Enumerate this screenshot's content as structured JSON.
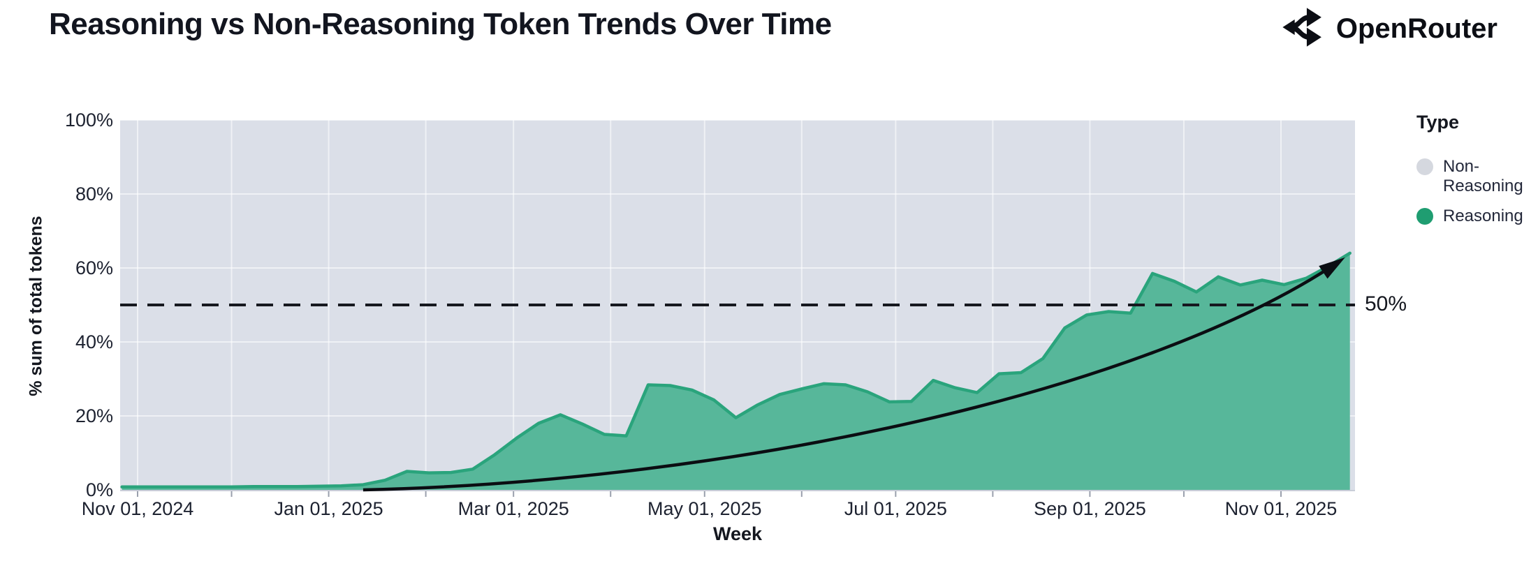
{
  "header": {
    "title": "Reasoning vs Non-Reasoning Token Trends Over Time",
    "brand": "OpenRouter"
  },
  "legend": {
    "title": "Type",
    "items": [
      {
        "label": "Non-Reasoning",
        "color": "#d5d8df"
      },
      {
        "label": "Reasoning",
        "color": "#1f9d71"
      }
    ]
  },
  "annotations": {
    "fifty_line_label": "50%"
  },
  "colors": {
    "plot_background": "#dbdfe8",
    "gridline": "rgba(255,255,255,0.55)",
    "axis_line": "#c9cdd8",
    "tick_mark": "#9aa0ad",
    "area_fill": "#57b79a",
    "area_stroke": "#2aa47c",
    "trend_line": "#0b0d12",
    "dashed_line": "#16181f",
    "tick_text": "#1d2230"
  },
  "chart_data": {
    "type": "area",
    "stacked_to_100": true,
    "title": "Reasoning vs Non-Reasoning Token Trends Over Time",
    "xlabel": "Week",
    "ylabel": "% sum of total tokens",
    "ylim": [
      0,
      100
    ],
    "grid": true,
    "legend_position": "right",
    "y_ticks": [
      "0%",
      "20%",
      "40%",
      "60%",
      "80%",
      "100%"
    ],
    "x_ticks": [
      "Nov 01, 2024",
      "Jan 01, 2025",
      "Mar 01, 2025",
      "May 01, 2025",
      "Jul 01, 2025",
      "Sep 01, 2025",
      "Nov 01, 2025"
    ],
    "x_minor_ticks_every": "month",
    "weeks": [
      "2024-10-27",
      "2024-11-03",
      "2024-11-10",
      "2024-11-17",
      "2024-11-24",
      "2024-12-01",
      "2024-12-08",
      "2024-12-15",
      "2024-12-22",
      "2024-12-29",
      "2025-01-05",
      "2025-01-12",
      "2025-01-19",
      "2025-01-26",
      "2025-02-02",
      "2025-02-09",
      "2025-02-16",
      "2025-02-23",
      "2025-03-02",
      "2025-03-09",
      "2025-03-16",
      "2025-03-23",
      "2025-03-30",
      "2025-04-06",
      "2025-04-13",
      "2025-04-20",
      "2025-04-27",
      "2025-05-04",
      "2025-05-11",
      "2025-05-18",
      "2025-05-25",
      "2025-06-01",
      "2025-06-08",
      "2025-06-15",
      "2025-06-22",
      "2025-06-29",
      "2025-07-06",
      "2025-07-13",
      "2025-07-20",
      "2025-07-27",
      "2025-08-03",
      "2025-08-10",
      "2025-08-17",
      "2025-08-24",
      "2025-08-31",
      "2025-09-07",
      "2025-09-14",
      "2025-09-21",
      "2025-09-28",
      "2025-10-05",
      "2025-10-12",
      "2025-10-19",
      "2025-10-26",
      "2025-11-02",
      "2025-11-09",
      "2025-11-16",
      "2025-11-23"
    ],
    "series": [
      {
        "name": "Reasoning",
        "color": "#57b79a",
        "values": [
          0.8,
          0.8,
          0.8,
          0.8,
          0.8,
          0.8,
          0.9,
          0.9,
          0.9,
          1.0,
          1.1,
          1.4,
          2.6,
          5.0,
          4.6,
          4.7,
          5.6,
          9.5,
          14.0,
          18.0,
          20.3,
          17.8,
          15.0,
          14.6,
          28.4,
          28.2,
          27.0,
          24.3,
          19.5,
          23.0,
          25.8,
          27.3,
          28.7,
          28.4,
          26.5,
          23.8,
          23.9,
          29.6,
          27.6,
          26.3,
          31.4,
          31.7,
          35.5,
          43.8,
          47.3,
          48.2,
          47.8,
          58.5,
          56.4,
          53.5,
          57.6,
          55.4,
          56.7,
          55.5,
          57.2,
          60.4,
          64.0
        ]
      },
      {
        "name": "Non-Reasoning",
        "color": "#dbdfe8",
        "fills_remainder_to": 100
      }
    ],
    "annotations": [
      {
        "type": "hline",
        "y": 50,
        "label": "50%",
        "style": "dashed"
      },
      {
        "type": "trend_arrow",
        "from": {
          "date": "2025-01-12",
          "y": 0
        },
        "to": {
          "date": "2025-11-20",
          "y": 62
        }
      }
    ]
  }
}
